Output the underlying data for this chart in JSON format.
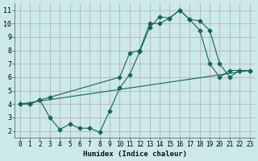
{
  "background_color": "#cce8e8",
  "grid_color": "#b8a8a8",
  "line_color": "#1a6655",
  "xlabel": "Humidex (Indice chaleur)",
  "xlim": [
    -0.5,
    23.5
  ],
  "ylim": [
    1.5,
    11.5
  ],
  "xticks": [
    0,
    1,
    2,
    3,
    4,
    5,
    6,
    7,
    8,
    9,
    10,
    11,
    12,
    13,
    14,
    15,
    16,
    17,
    18,
    19,
    20,
    21,
    22,
    23
  ],
  "yticks": [
    2,
    3,
    4,
    5,
    6,
    7,
    8,
    9,
    10,
    11
  ],
  "line1_x": [
    0,
    1,
    2,
    3,
    10,
    11,
    12,
    13,
    14,
    15,
    16,
    17,
    18,
    19,
    20,
    21,
    22,
    23
  ],
  "line1_y": [
    4.0,
    4.0,
    4.3,
    4.5,
    6.0,
    7.8,
    8.0,
    10.0,
    10.0,
    10.4,
    11.0,
    10.3,
    10.2,
    9.5,
    7.0,
    6.0,
    6.5,
    6.5
  ],
  "line2_x": [
    0,
    23
  ],
  "line2_y": [
    4.0,
    6.5
  ],
  "line3_x": [
    0,
    1,
    2,
    3,
    4,
    5,
    6,
    7,
    8,
    9,
    10,
    11,
    12,
    13,
    14,
    15,
    16,
    17,
    18,
    19,
    20,
    21,
    22,
    23
  ],
  "line3_y": [
    4.0,
    4.0,
    4.3,
    3.0,
    2.1,
    2.5,
    2.2,
    2.2,
    1.9,
    3.5,
    5.2,
    6.2,
    7.9,
    9.7,
    10.5,
    10.4,
    11.0,
    10.3,
    9.5,
    7.0,
    6.0,
    6.5,
    6.5,
    6.5
  ],
  "title_fontsize": 7,
  "xlabel_fontsize": 6.5,
  "tick_fontsize": 5.5
}
